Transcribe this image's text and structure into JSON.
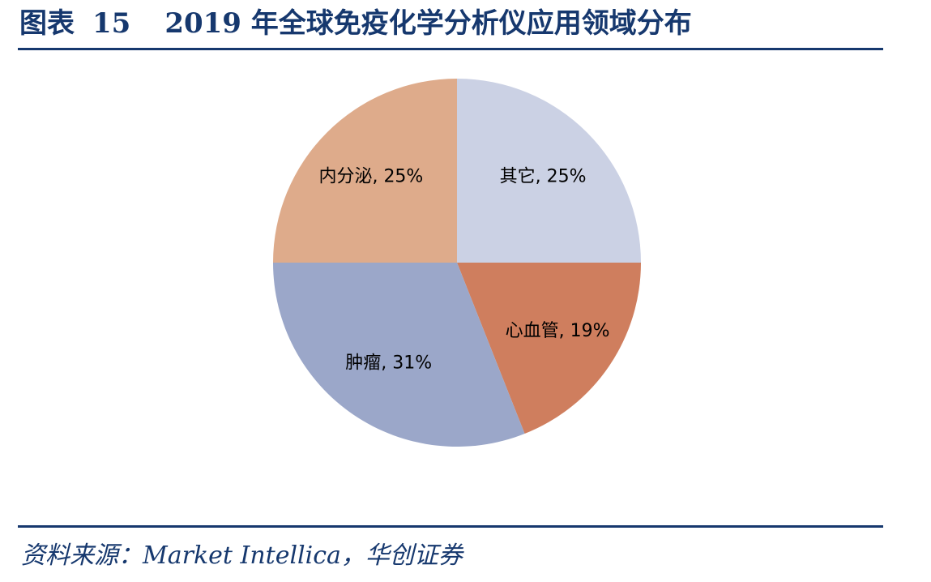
{
  "figure": {
    "label": "图表",
    "number": "15",
    "title": "2019 年全球免疫化学分析仪应用领域分布"
  },
  "source": "资料来源：Market Intellica，华创证券",
  "chart_data": {
    "type": "pie",
    "title": "2019 年全球免疫化学分析仪应用领域分布",
    "start": "12 o'clock, clockwise",
    "slices": [
      {
        "name": "其它",
        "value": 25,
        "label": "其它, 25%",
        "color": "#cbd1e4"
      },
      {
        "name": "心血管",
        "value": 19,
        "label": "心血管, 19%",
        "color": "#cf7e5e"
      },
      {
        "name": "肿瘤",
        "value": 31,
        "label": "肿瘤, 31%",
        "color": "#9ba7c9"
      },
      {
        "name": "内分泌",
        "value": 25,
        "label": "内分泌, 25%",
        "color": "#deab8b"
      }
    ],
    "legend": "none"
  }
}
